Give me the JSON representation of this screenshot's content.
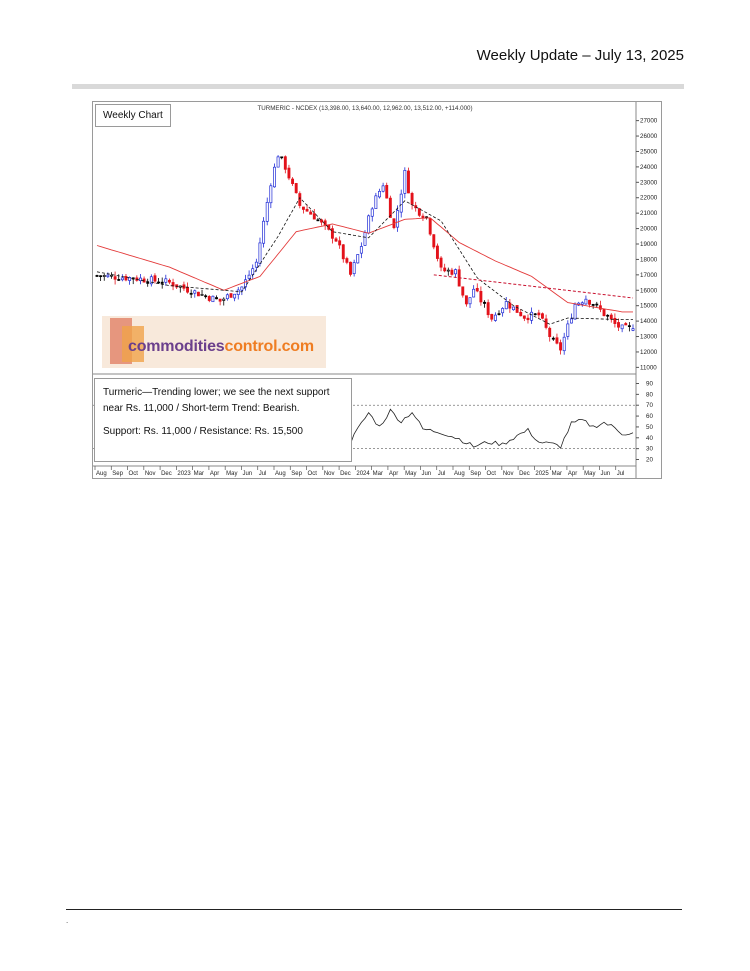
{
  "header": {
    "title": "Weekly Update – July 13, 2025"
  },
  "chart_label": "Weekly Chart",
  "chart_title": "TURMERIC - NCDEX (13,398.00, 13,640.00, 12,962.00, 13,512.00, +114.000)",
  "info": {
    "line1": "Turmeric—Trending lower; we see the next support",
    "line2": "near Rs. 11,000 / Short-term Trend: Bearish.",
    "line3": "Support: Rs. 11,000 / Resistance: Rs. 15,500"
  },
  "logo": {
    "part1": "commodities",
    "part2": "control.com"
  },
  "footer": {
    "mark": "."
  },
  "colors": {
    "up": "#1f2bd6",
    "down": "#e3121b",
    "neutral": "#000000",
    "ma": "#e33a3a",
    "trendline": "#c8102e",
    "rsi": "#222222"
  },
  "chart_data": {
    "type": "candlestick",
    "price_axis": {
      "ticks": [
        11000,
        12000,
        13000,
        14000,
        15000,
        16000,
        17000,
        18000,
        19000,
        20000,
        21000,
        22000,
        23000,
        24000,
        25000,
        26000,
        27000
      ],
      "labels": [
        "11000",
        "12000",
        "13000",
        "14000",
        "15000",
        "16000",
        "17000",
        "18000",
        "19000",
        "20000",
        "21000",
        "22000",
        "23000",
        "24000",
        "25000",
        "26000",
        "27000"
      ]
    },
    "rsi_axis": {
      "ticks": [
        20,
        30,
        40,
        50,
        60,
        70,
        80,
        90
      ],
      "labels": [
        "20",
        "30",
        "40",
        "50",
        "60",
        "70",
        "80",
        "90"
      ],
      "bands": [
        30,
        70
      ]
    },
    "x_months": [
      "Aug",
      "Sep",
      "Oct",
      "Nov",
      "Dec",
      "2023",
      "Mar",
      "Apr",
      "May",
      "Jun",
      "Jul",
      "Aug",
      "Sep",
      "Oct",
      "Nov",
      "Dec",
      "2024",
      "Mar",
      "Apr",
      "May",
      "Jun",
      "Jul",
      "Aug",
      "Sep",
      "Oct",
      "Nov",
      "Dec",
      "2025",
      "Mar",
      "Apr",
      "May",
      "Jun",
      "Jul"
    ],
    "close_anchors": [
      [
        0,
        16950
      ],
      [
        10,
        16800
      ],
      [
        20,
        16500
      ],
      [
        28,
        15800
      ],
      [
        34,
        15300
      ],
      [
        40,
        16200
      ],
      [
        44,
        17800
      ],
      [
        48,
        23000
      ],
      [
        50,
        24800
      ],
      [
        52,
        24000
      ],
      [
        56,
        21500
      ],
      [
        60,
        20800
      ],
      [
        66,
        19300
      ],
      [
        70,
        17000
      ],
      [
        73,
        18900
      ],
      [
        76,
        21500
      ],
      [
        79,
        22900
      ],
      [
        82,
        20000
      ],
      [
        85,
        23600
      ],
      [
        87,
        21500
      ],
      [
        91,
        20700
      ],
      [
        95,
        17300
      ],
      [
        99,
        17200
      ],
      [
        102,
        15000
      ],
      [
        104,
        16100
      ],
      [
        109,
        14200
      ],
      [
        113,
        15200
      ],
      [
        118,
        14300
      ],
      [
        122,
        14400
      ],
      [
        126,
        12600
      ],
      [
        128,
        12200
      ],
      [
        132,
        15100
      ],
      [
        135,
        15500
      ],
      [
        139,
        14700
      ],
      [
        143,
        13800
      ],
      [
        145,
        13512
      ]
    ],
    "ma_anchors": [
      [
        0,
        18900
      ],
      [
        20,
        17500
      ],
      [
        35,
        16000
      ],
      [
        45,
        16900
      ],
      [
        55,
        19800
      ],
      [
        65,
        20300
      ],
      [
        75,
        19700
      ],
      [
        85,
        20600
      ],
      [
        92,
        20700
      ],
      [
        100,
        19100
      ],
      [
        110,
        17900
      ],
      [
        120,
        16900
      ],
      [
        130,
        15200
      ],
      [
        145,
        14600
      ]
    ],
    "dashed_anchors": [
      [
        0,
        17200
      ],
      [
        20,
        16300
      ],
      [
        40,
        15900
      ],
      [
        50,
        19500
      ],
      [
        56,
        22000
      ],
      [
        65,
        19800
      ],
      [
        75,
        19400
      ],
      [
        85,
        21800
      ],
      [
        95,
        20500
      ],
      [
        105,
        16800
      ],
      [
        115,
        15000
      ],
      [
        125,
        13800
      ],
      [
        130,
        14200
      ],
      [
        145,
        14100
      ]
    ],
    "trendline": {
      "from": [
        93,
        17000
      ],
      "to": [
        148,
        15500
      ]
    },
    "rsi_anchors": [
      [
        70,
        36
      ],
      [
        72,
        48
      ],
      [
        75,
        63
      ],
      [
        78,
        50
      ],
      [
        81,
        65
      ],
      [
        84,
        55
      ],
      [
        87,
        64
      ],
      [
        90,
        48
      ],
      [
        95,
        45
      ],
      [
        100,
        39
      ],
      [
        104,
        32
      ],
      [
        108,
        36
      ],
      [
        112,
        34
      ],
      [
        116,
        42
      ],
      [
        119,
        47
      ],
      [
        122,
        36
      ],
      [
        126,
        34
      ],
      [
        128,
        32
      ],
      [
        131,
        53
      ],
      [
        134,
        56
      ],
      [
        137,
        50
      ],
      [
        140,
        54
      ],
      [
        143,
        49
      ],
      [
        145,
        44
      ]
    ],
    "last": {
      "open": 13398,
      "high": 13640,
      "low": 12962,
      "close": 13512,
      "change": 114
    }
  }
}
